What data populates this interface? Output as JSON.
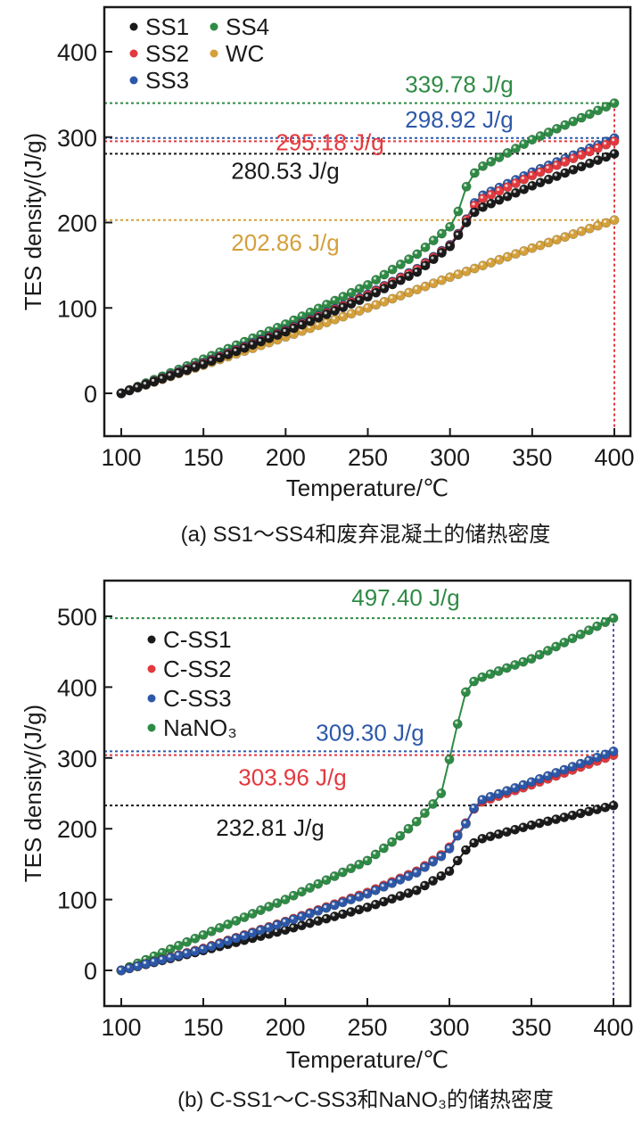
{
  "chart_data": [
    {
      "type": "line",
      "title": "",
      "caption": "(a) SS1～SS4和废弃混凝土的储热密度",
      "xlabel": "Temperature/℃",
      "ylabel": "TES density/(J/g)",
      "xlim": [
        90,
        410
      ],
      "ylim": [
        -50,
        450
      ],
      "xticks": [
        100,
        150,
        200,
        250,
        300,
        350,
        400
      ],
      "yticks": [
        0,
        100,
        200,
        300,
        400
      ],
      "x_step": 5,
      "legend_position": "top-left",
      "legend_columns": 2,
      "grid": false,
      "series": [
        {
          "name": "SS1",
          "color": "#1a1a1a",
          "keypoints": [
            [
              100,
              0
            ],
            [
              150,
              34
            ],
            [
              200,
              72
            ],
            [
              250,
              113
            ],
            [
              280,
              142
            ],
            [
              300,
              172
            ],
            [
              305,
              185
            ],
            [
              310,
              200
            ],
            [
              315,
              212
            ],
            [
              320,
              218
            ],
            [
              350,
              243
            ],
            [
              400,
              280.53
            ]
          ]
        },
        {
          "name": "SS2",
          "color": "#e2393f",
          "keypoints": [
            [
              100,
              0
            ],
            [
              150,
              35
            ],
            [
              200,
              73
            ],
            [
              250,
              115
            ],
            [
              280,
              145
            ],
            [
              300,
              173
            ],
            [
              305,
              186
            ],
            [
              310,
              203
            ],
            [
              315,
              220
            ],
            [
              320,
              228
            ],
            [
              350,
              255
            ],
            [
              400,
              295.18
            ]
          ]
        },
        {
          "name": "SS3",
          "color": "#2d58a8",
          "keypoints": [
            [
              100,
              0
            ],
            [
              150,
              36
            ],
            [
              200,
              74
            ],
            [
              250,
              116
            ],
            [
              280,
              146
            ],
            [
              300,
              174
            ],
            [
              305,
              187
            ],
            [
              310,
              204
            ],
            [
              315,
              223
            ],
            [
              320,
              232
            ],
            [
              350,
              259
            ],
            [
              400,
              298.92
            ]
          ]
        },
        {
          "name": "SS4",
          "color": "#2e8b45",
          "keypoints": [
            [
              100,
              0
            ],
            [
              150,
              40
            ],
            [
              200,
              81
            ],
            [
              250,
              127
            ],
            [
              280,
              163
            ],
            [
              300,
              195
            ],
            [
              305,
              213
            ],
            [
              310,
              242
            ],
            [
              315,
              258
            ],
            [
              320,
              266
            ],
            [
              350,
              297
            ],
            [
              400,
              339.78
            ]
          ]
        },
        {
          "name": "WC",
          "color": "#d4a03b",
          "keypoints": [
            [
              100,
              0
            ],
            [
              150,
              33
            ],
            [
              200,
              66
            ],
            [
              250,
              100
            ],
            [
              300,
              136
            ],
            [
              350,
              170
            ],
            [
              400,
              202.86
            ]
          ]
        }
      ],
      "annotations": [
        {
          "text": "339.78 J/g",
          "value": 339.78,
          "color": "#2e8b45"
        },
        {
          "text": "298.92 J/g",
          "value": 298.92,
          "color": "#2d58a8"
        },
        {
          "text": "295.18 J/g",
          "value": 295.18,
          "color": "#e2393f"
        },
        {
          "text": "280.53 J/g",
          "value": 280.53,
          "color": "#1a1a1a"
        },
        {
          "text": "202.86 J/g",
          "value": 202.86,
          "color": "#d4a03b"
        }
      ],
      "vertical_marker": {
        "x": 400,
        "color": "#e2393f"
      }
    },
    {
      "type": "line",
      "title": "",
      "caption": "(b) C-SS1～C-SS3和NaNO₃的储热密度",
      "xlabel": "Temperature/℃",
      "ylabel": "TES density/(J/g)",
      "xlim": [
        90,
        410
      ],
      "ylim": [
        -50,
        550
      ],
      "xticks": [
        100,
        150,
        200,
        250,
        300,
        350,
        400
      ],
      "yticks": [
        0,
        100,
        200,
        300,
        400,
        500
      ],
      "x_step": 5,
      "legend_position": "upper-left",
      "legend_columns": 1,
      "grid": false,
      "series": [
        {
          "name": "C-SS1",
          "color": "#1a1a1a",
          "keypoints": [
            [
              100,
              0
            ],
            [
              150,
              28
            ],
            [
              200,
              57
            ],
            [
              250,
              89
            ],
            [
              280,
              113
            ],
            [
              300,
              140
            ],
            [
              305,
              155
            ],
            [
              310,
              170
            ],
            [
              315,
              180
            ],
            [
              320,
              186
            ],
            [
              350,
              205
            ],
            [
              400,
              232.81
            ]
          ]
        },
        {
          "name": "C-SS2",
          "color": "#e2393f",
          "keypoints": [
            [
              100,
              0
            ],
            [
              150,
              31
            ],
            [
              200,
              69
            ],
            [
              250,
              110
            ],
            [
              280,
              140
            ],
            [
              295,
              163
            ],
            [
              300,
              174
            ],
            [
              305,
              192
            ],
            [
              310,
              208
            ],
            [
              315,
              228
            ],
            [
              320,
              238
            ],
            [
              350,
              262
            ],
            [
              400,
              303.96
            ]
          ]
        },
        {
          "name": "C-SS3",
          "color": "#2d58a8",
          "keypoints": [
            [
              100,
              0
            ],
            [
              150,
              30
            ],
            [
              200,
              68
            ],
            [
              250,
              108
            ],
            [
              280,
              138
            ],
            [
              295,
              161
            ],
            [
              300,
              172
            ],
            [
              305,
              190
            ],
            [
              310,
              207
            ],
            [
              315,
              229
            ],
            [
              320,
              241
            ],
            [
              350,
              266
            ],
            [
              400,
              309.3
            ]
          ]
        },
        {
          "name": "NaNO₃",
          "color": "#2e8b45",
          "keypoints": [
            [
              100,
              0
            ],
            [
              150,
              50
            ],
            [
              200,
              100
            ],
            [
              250,
              155
            ],
            [
              270,
              190
            ],
            [
              280,
              210
            ],
            [
              285,
              222
            ],
            [
              290,
              235
            ],
            [
              295,
              250
            ],
            [
              300,
              298
            ],
            [
              305,
              348
            ],
            [
              310,
              393
            ],
            [
              315,
              408
            ],
            [
              320,
              414
            ],
            [
              350,
              440
            ],
            [
              400,
              497.4
            ]
          ]
        }
      ],
      "annotations": [
        {
          "text": "497.40 J/g",
          "value": 497.4,
          "color": "#2e8b45"
        },
        {
          "text": "309.30 J/g",
          "value": 309.3,
          "color": "#2d58a8"
        },
        {
          "text": "303.96 J/g",
          "value": 303.96,
          "color": "#e2393f"
        },
        {
          "text": "232.81 J/g",
          "value": 232.81,
          "color": "#1a1a1a"
        }
      ],
      "vertical_marker": {
        "x": 400,
        "color": "#5a4fa0"
      }
    }
  ]
}
